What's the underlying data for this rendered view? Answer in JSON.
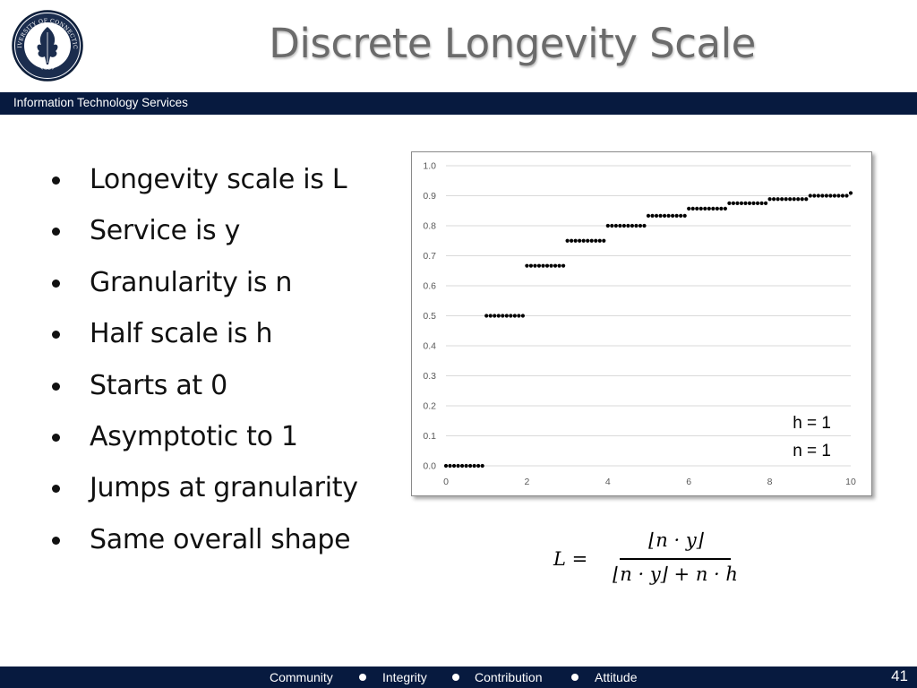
{
  "slide": {
    "title": "Discrete Longevity Scale",
    "header_text": "Information Technology Services",
    "logo_text": {
      "top": "UNIVERSITY OF CONNECTICUT",
      "year": "1881"
    }
  },
  "bullets": [
    "Longevity scale is L",
    "Service is y",
    "Granularity is n",
    "Half scale is h",
    "Starts at 0",
    "Asymptotic to 1",
    "Jumps at granularity",
    "Same overall shape"
  ],
  "chart_data": {
    "type": "scatter",
    "xlim": [
      0,
      10
    ],
    "ylim": [
      0,
      1.0
    ],
    "x_ticks": [
      "0",
      "2",
      "4",
      "6",
      "8",
      "10"
    ],
    "y_ticks": [
      "0.0",
      "0.1",
      "0.2",
      "0.3",
      "0.4",
      "0.5",
      "0.6",
      "0.7",
      "0.8",
      "0.9",
      "1.0"
    ],
    "grid": true,
    "h": 1,
    "n": 1,
    "x_step": 0.1,
    "annotations": [
      "h = 1",
      "n = 1"
    ],
    "marker_color": "#000000",
    "grid_color": "#d9d9d9"
  },
  "equation": {
    "lhs": "L =",
    "numerator": "⌊n · y⌋",
    "denominator": "⌊n · y⌋ + n · h"
  },
  "footer": {
    "items": [
      "Community",
      "Integrity",
      "Contribution",
      "Attitude"
    ],
    "page_number": "41"
  },
  "colors": {
    "navy": "#071a3f",
    "title_gray": "#6b6b6b"
  }
}
